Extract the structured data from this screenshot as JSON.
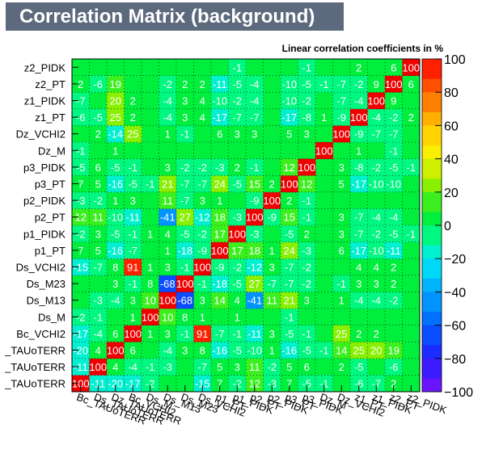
{
  "chart_data": {
    "type": "heatmap",
    "title": "Correlation Matrix (background)",
    "subtitle": "Linear correlation coefficients in %",
    "variables": [
      "Bc_TAUoTERR",
      "Bc_TAUoTERR",
      "Bc_TAUoTERR",
      "Bc_VCHI2",
      "Ds_M",
      "Ds_M13",
      "Ds_M23",
      "Ds_VCHI2",
      "p1_PT",
      "p1_PIDK",
      "p2_PT",
      "p2_PIDK",
      "p3_PT",
      "p3_PIDK",
      "Dz_M",
      "Dz_VCHI2",
      "z1_PT",
      "z1_PIDK",
      "z2_PT",
      "z2_PIDK"
    ],
    "y_labels": [
      "_TAUoTERR",
      "_TAUoTERR",
      "_TAUoTERR",
      "Bc_VCHI2",
      "Ds_M",
      "Ds_M13",
      "Ds_M23",
      "Ds_VCHI2",
      "p1_PT",
      "p1_PIDK",
      "p2_PT",
      "p2_PIDK",
      "p3_PT",
      "p3_PIDK",
      "Dz_M",
      "Dz_VCHI2",
      "z1_PT",
      "z1_PIDK",
      "z2_PT",
      "z2_PIDK"
    ],
    "x_labels": [
      "Bc_TAUoTERR",
      "Ds_TAUoTERR",
      "Dz_TAUoTERR",
      "Bc_VCHI2",
      "Ds_M",
      "Ds_M13",
      "Ds_M23",
      "Ds_VCHI2",
      "p1_PT",
      "p1_PIDK",
      "p2_PT",
      "p2_PIDK",
      "p3_PT",
      "p3_PIDK",
      "Dz_M",
      "Dz_VCHI2",
      "z1_PT",
      "z1_PIDK",
      "z2_PT",
      "z2_PIDK"
    ],
    "matrix": [
      [
        100,
        -11,
        -20,
        -17,
        -2,
        null,
        null,
        -15,
        7,
        -2,
        12,
        -3,
        7,
        -5,
        -1,
        null,
        -6,
        -7,
        2,
        null
      ],
      [
        -11,
        100,
        4,
        -4,
        -1,
        -3,
        null,
        -7,
        5,
        3,
        11,
        -2,
        5,
        6,
        null,
        2,
        -5,
        null,
        -6,
        null
      ],
      [
        -20,
        4,
        100,
        6,
        null,
        -4,
        3,
        8,
        -16,
        -5,
        -10,
        1,
        -16,
        -5,
        -1,
        14,
        25,
        20,
        19,
        null
      ],
      [
        -17,
        -4,
        6,
        100,
        1,
        3,
        -1,
        91,
        -7,
        -1,
        -11,
        3,
        -5,
        -1,
        null,
        25,
        2,
        2,
        null,
        null
      ],
      [
        -2,
        -1,
        null,
        1,
        100,
        10,
        8,
        1,
        null,
        1,
        null,
        null,
        -1,
        null,
        null,
        null,
        null,
        null,
        null,
        null
      ],
      [
        null,
        -3,
        -4,
        3,
        10,
        100,
        -68,
        3,
        14,
        4,
        -41,
        11,
        21,
        3,
        null,
        1,
        -4,
        -4,
        -2,
        null
      ],
      [
        null,
        null,
        3,
        -1,
        8,
        -68,
        100,
        -1,
        -18,
        -5,
        27,
        -7,
        -7,
        -2,
        null,
        -1,
        3,
        3,
        2,
        null
      ],
      [
        -15,
        -7,
        8,
        91,
        1,
        3,
        -1,
        100,
        -9,
        -2,
        -12,
        3,
        -7,
        -2,
        null,
        null,
        4,
        4,
        2,
        null
      ],
      [
        7,
        5,
        -16,
        -7,
        null,
        1,
        -18,
        -9,
        100,
        17,
        18,
        1,
        24,
        -3,
        null,
        6,
        -17,
        -10,
        -11,
        null
      ],
      [
        -2,
        3,
        -5,
        -1,
        1,
        4,
        -5,
        -2,
        17,
        100,
        -3,
        null,
        -5,
        2,
        null,
        3,
        -7,
        -2,
        -5,
        -1
      ],
      [
        12,
        11,
        -10,
        -11,
        null,
        -41,
        27,
        -12,
        18,
        -3,
        100,
        -9,
        15,
        -1,
        null,
        3,
        -7,
        -4,
        -4,
        null
      ],
      [
        -3,
        -2,
        1,
        3,
        null,
        11,
        -7,
        3,
        1,
        null,
        -9,
        100,
        2,
        -1,
        null,
        null,
        null,
        null,
        null,
        null
      ],
      [
        7,
        5,
        -16,
        -5,
        -1,
        21,
        -7,
        -7,
        24,
        -5,
        15,
        2,
        100,
        12,
        null,
        5,
        -17,
        -10,
        -10,
        null
      ],
      [
        -5,
        6,
        -5,
        -1,
        null,
        3,
        -2,
        -2,
        -3,
        2,
        -1,
        null,
        12,
        100,
        null,
        3,
        -8,
        -2,
        -5,
        -1
      ],
      [
        -1,
        null,
        1,
        null,
        null,
        null,
        null,
        null,
        null,
        null,
        null,
        null,
        null,
        null,
        100,
        null,
        1,
        null,
        -1,
        null
      ],
      [
        null,
        2,
        -14,
        25,
        null,
        1,
        -1,
        null,
        6,
        3,
        3,
        null,
        5,
        3,
        null,
        100,
        -9,
        -7,
        -7,
        null
      ],
      [
        -6,
        -5,
        25,
        2,
        null,
        -4,
        3,
        4,
        -17,
        -7,
        -7,
        null,
        -17,
        -8,
        1,
        -9,
        100,
        -4,
        -2,
        2
      ],
      [
        -7,
        null,
        20,
        2,
        null,
        -4,
        3,
        4,
        -10,
        -2,
        -4,
        null,
        -10,
        -2,
        null,
        -7,
        -4,
        100,
        9,
        null
      ],
      [
        2,
        -6,
        19,
        null,
        null,
        -2,
        2,
        2,
        -11,
        -5,
        -4,
        null,
        -10,
        -5,
        -1,
        -7,
        -2,
        9,
        100,
        6
      ],
      [
        null,
        null,
        null,
        null,
        null,
        null,
        null,
        null,
        null,
        -1,
        null,
        null,
        null,
        -1,
        null,
        null,
        2,
        null,
        6,
        100
      ]
    ],
    "zlim": [
      -100,
      100
    ],
    "colorbar_ticks": [
      "100",
      "80",
      "60",
      "40",
      "20",
      "0",
      "−20",
      "−40",
      "−60",
      "−80",
      "−100"
    ]
  }
}
